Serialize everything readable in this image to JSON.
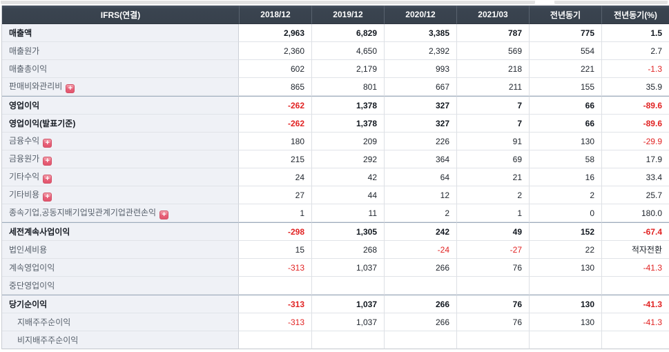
{
  "icons": {
    "plus_glyph": "+"
  },
  "table": {
    "corner_header": "IFRS(연결)",
    "columns": [
      "2018/12",
      "2019/12",
      "2020/12",
      "2021/03",
      "전년동기",
      "전년동기(%)"
    ],
    "colors": {
      "header_bg": "#3a4450",
      "header_bg_light": "#4a5463",
      "header_text": "#ffffff",
      "label_col_bg": "#eff1f6",
      "negative": "#e12222",
      "section_border": "#9dabbc",
      "row_border": "#e0e3e8"
    },
    "rows": [
      {
        "label": "매출액",
        "bold": true,
        "values": [
          "2,963",
          "6,829",
          "3,385",
          "787",
          "775",
          "1.5"
        ]
      },
      {
        "label": "매출원가",
        "values": [
          "2,360",
          "4,650",
          "2,392",
          "569",
          "554",
          "2.7"
        ]
      },
      {
        "label": "매출총이익",
        "values": [
          "602",
          "2,179",
          "993",
          "218",
          "221",
          "-1.3"
        ]
      },
      {
        "label": "판매비와관리비",
        "plus": true,
        "values": [
          "865",
          "801",
          "667",
          "211",
          "155",
          "35.9"
        ]
      },
      {
        "label": "영업이익",
        "bold": true,
        "section": true,
        "values": [
          "-262",
          "1,378",
          "327",
          "7",
          "66",
          "-89.6"
        ]
      },
      {
        "label": "영업이익(발표기준)",
        "bold": true,
        "values": [
          "-262",
          "1,378",
          "327",
          "7",
          "66",
          "-89.6"
        ]
      },
      {
        "label": "금융수익",
        "plus": true,
        "values": [
          "180",
          "209",
          "226",
          "91",
          "130",
          "-29.9"
        ]
      },
      {
        "label": "금융원가",
        "plus": true,
        "values": [
          "215",
          "292",
          "364",
          "69",
          "58",
          "17.9"
        ]
      },
      {
        "label": "기타수익",
        "plus": true,
        "values": [
          "24",
          "42",
          "64",
          "21",
          "16",
          "33.4"
        ]
      },
      {
        "label": "기타비용",
        "plus": true,
        "values": [
          "27",
          "44",
          "12",
          "2",
          "2",
          "25.7"
        ]
      },
      {
        "label": "종속기업,공동지배기업및관계기업관련손익",
        "plus": true,
        "values": [
          "1",
          "11",
          "2",
          "1",
          "0",
          "180.0"
        ]
      },
      {
        "label": "세전계속사업이익",
        "bold": true,
        "section": true,
        "values": [
          "-298",
          "1,305",
          "242",
          "49",
          "152",
          "-67.4"
        ]
      },
      {
        "label": "법인세비용",
        "values": [
          "15",
          "268",
          "-24",
          "-27",
          "22",
          "적자전환"
        ]
      },
      {
        "label": "계속영업이익",
        "values": [
          "-313",
          "1,037",
          "266",
          "76",
          "130",
          "-41.3"
        ]
      },
      {
        "label": "중단영업이익",
        "values": [
          "",
          "",
          "",
          "",
          "",
          ""
        ]
      },
      {
        "label": "당기순이익",
        "bold": true,
        "section": true,
        "values": [
          "-313",
          "1,037",
          "266",
          "76",
          "130",
          "-41.3"
        ]
      },
      {
        "label": "지배주주순이익",
        "indent": true,
        "values": [
          "-313",
          "1,037",
          "266",
          "76",
          "130",
          "-41.3"
        ]
      },
      {
        "label": "비지배주주순이익",
        "indent": true,
        "values": [
          "",
          "",
          "",
          "",
          "",
          ""
        ]
      }
    ]
  }
}
